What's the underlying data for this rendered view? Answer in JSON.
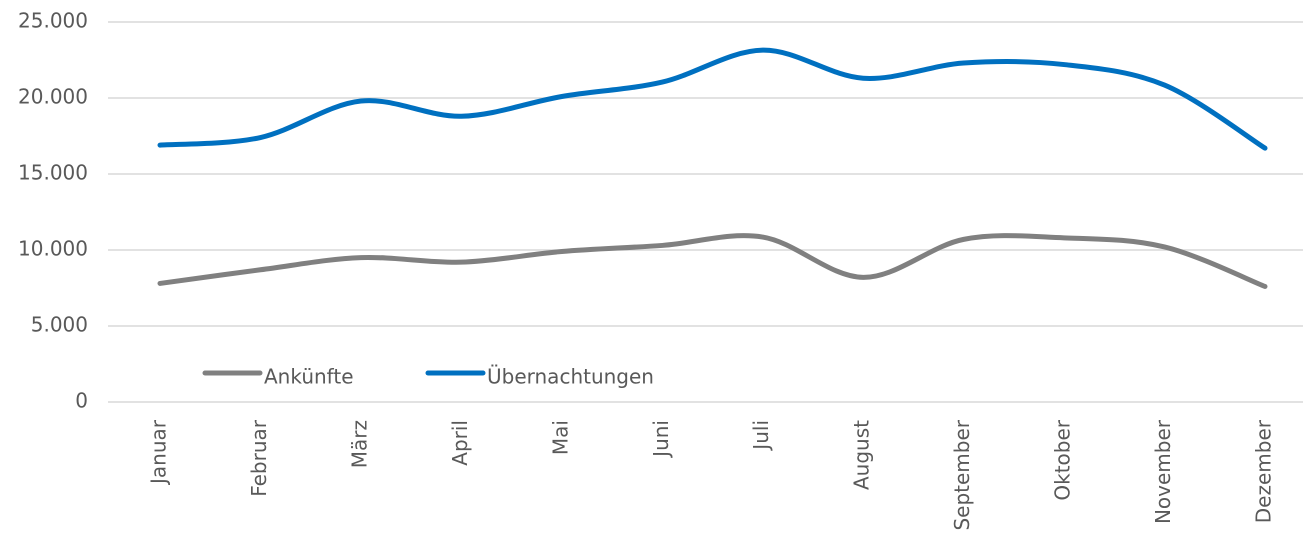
{
  "chart_data": {
    "type": "line",
    "categories": [
      "Januar",
      "Februar",
      "März",
      "April",
      "Mai",
      "Juni",
      "Juli",
      "August",
      "September",
      "Oktober",
      "November",
      "Dezember"
    ],
    "series": [
      {
        "name": "Ankünfte",
        "color": "#808080",
        "values": [
          7800,
          8700,
          9500,
          9200,
          9900,
          10300,
          10850,
          8200,
          10700,
          10800,
          10200,
          7600
        ]
      },
      {
        "name": "Übernachtungen",
        "color": "#0070c0",
        "values": [
          16900,
          17400,
          19800,
          18800,
          20100,
          21050,
          23150,
          21300,
          22300,
          22200,
          20850,
          16700
        ]
      }
    ],
    "ylim": [
      0,
      25000
    ],
    "yticks": [
      0,
      {
        "value": 5000,
        "label": "5.000"
      },
      {
        "value": 10000,
        "label": "10.000"
      },
      {
        "value": 15000,
        "label": "15.000"
      },
      {
        "value": 20000,
        "label": "20.000"
      },
      {
        "value": 25000,
        "label": "25.000"
      }
    ],
    "grid": true,
    "smooth": true,
    "legend": "bottom-left"
  }
}
